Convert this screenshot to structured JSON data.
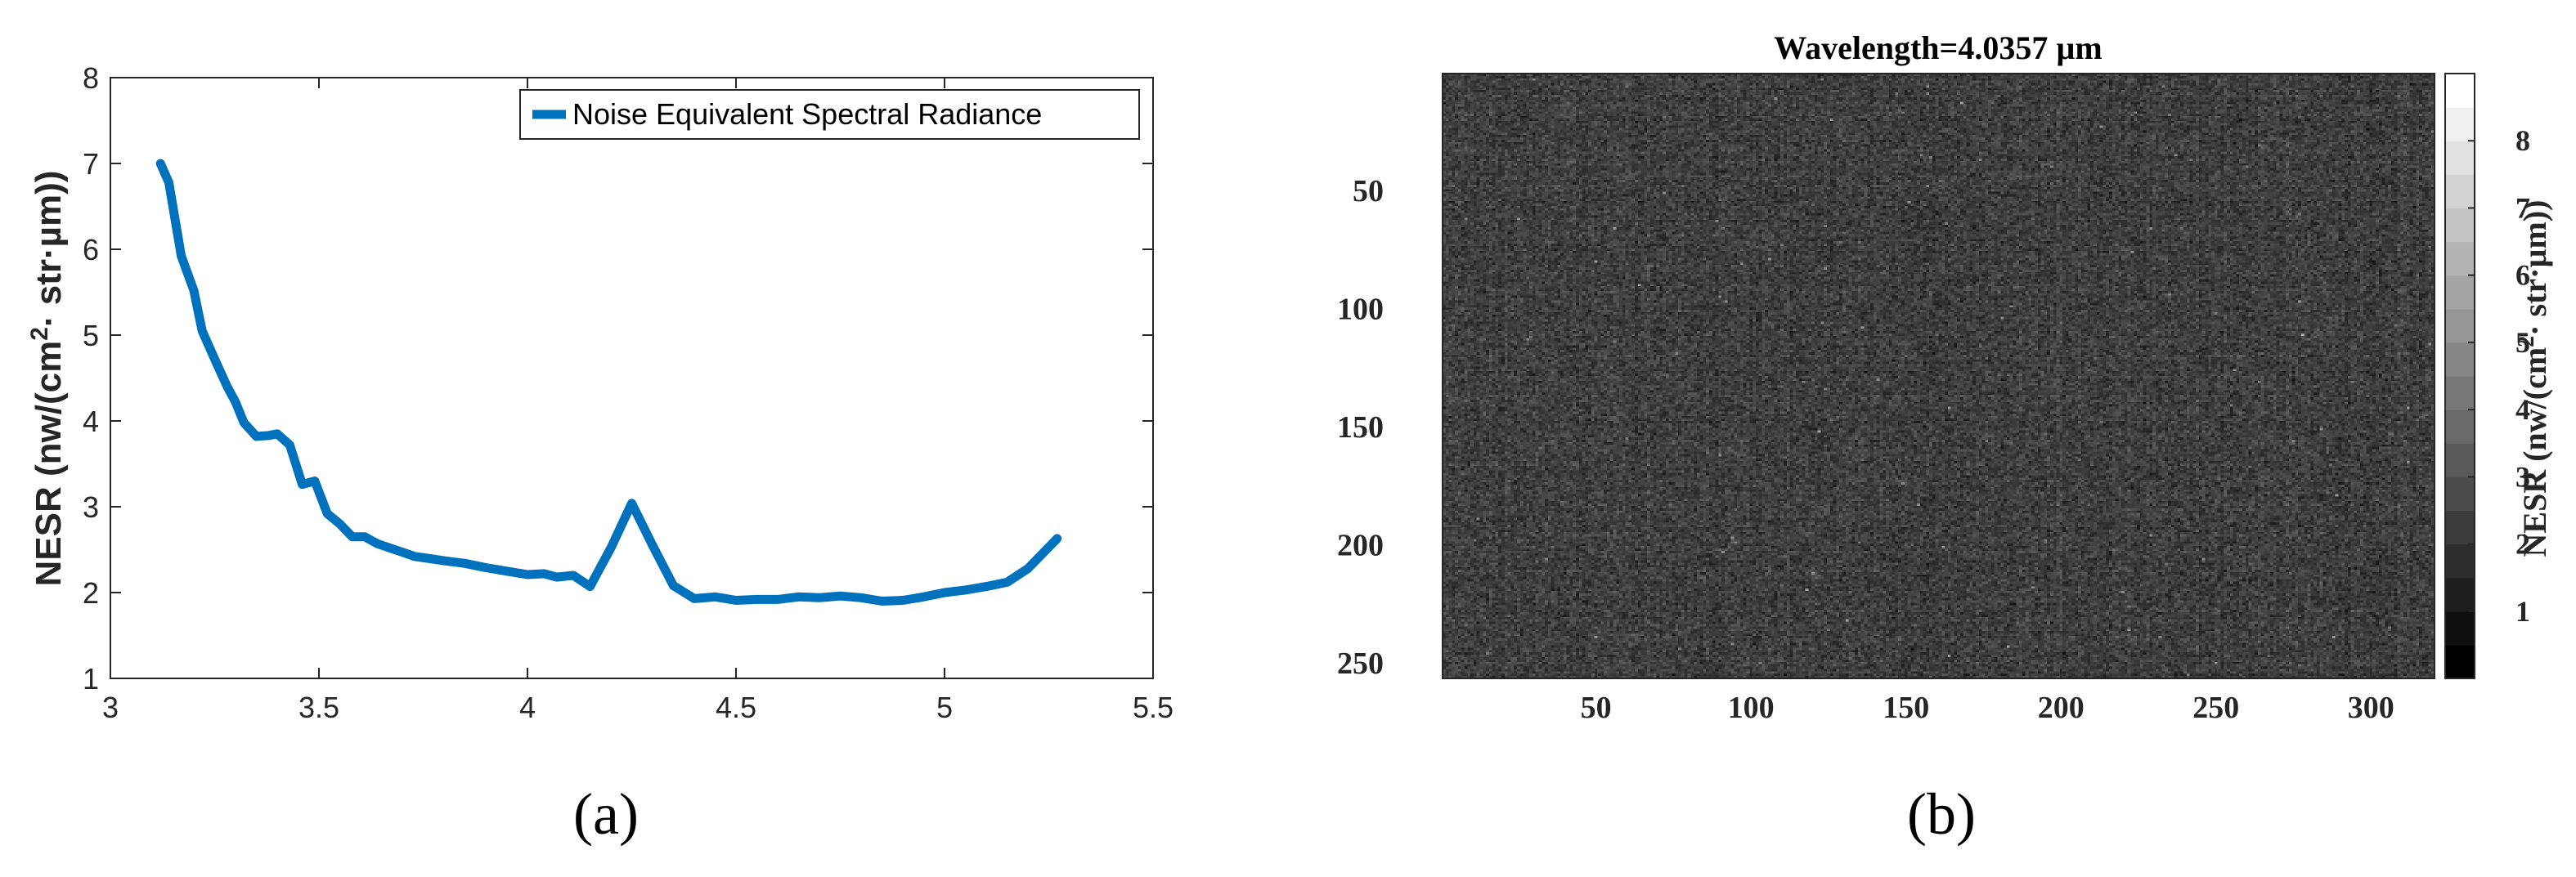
{
  "chart_data": [
    {
      "panel": "a",
      "type": "line",
      "title": "",
      "xlabel": "",
      "ylabel": "NESR (nw/(cm²· str·µm))",
      "ylabel_parts": [
        "NESR (nw/(cm",
        "2",
        "· str·µm))"
      ],
      "xlim": [
        3,
        5.5
      ],
      "ylim": [
        1,
        8
      ],
      "xticks": [
        "3",
        "3.5",
        "4",
        "4.5",
        "5",
        "5.5"
      ],
      "xtick_values": [
        3,
        3.5,
        4,
        4.5,
        5,
        5.5
      ],
      "yticks": [
        "1",
        "2",
        "3",
        "4",
        "5",
        "6",
        "7",
        "8"
      ],
      "ytick_values": [
        1,
        2,
        3,
        4,
        5,
        6,
        7,
        8
      ],
      "grid": false,
      "legend_position": "top-right",
      "series": [
        {
          "name": "Noise Equivalent Spectral Radiance",
          "color": "#0072BD",
          "x": [
            3.12,
            3.14,
            3.17,
            3.2,
            3.22,
            3.25,
            3.28,
            3.3,
            3.32,
            3.35,
            3.38,
            3.4,
            3.43,
            3.46,
            3.49,
            3.52,
            3.55,
            3.58,
            3.61,
            3.64,
            3.67,
            3.7,
            3.73,
            3.76,
            3.8,
            3.85,
            3.9,
            3.95,
            4.0,
            4.04,
            4.07,
            4.11,
            4.15,
            4.2,
            4.25,
            4.3,
            4.35,
            4.4,
            4.45,
            4.5,
            4.55,
            4.6,
            4.65,
            4.7,
            4.75,
            4.8,
            4.85,
            4.9,
            4.95,
            5.0,
            5.05,
            5.1,
            5.15,
            5.2,
            5.27
          ],
          "y": [
            7.0,
            6.78,
            5.92,
            5.52,
            5.05,
            4.72,
            4.4,
            4.22,
            3.98,
            3.82,
            3.83,
            3.85,
            3.72,
            3.26,
            3.3,
            2.92,
            2.8,
            2.65,
            2.65,
            2.57,
            2.52,
            2.47,
            2.42,
            2.4,
            2.37,
            2.34,
            2.29,
            2.25,
            2.21,
            2.22,
            2.18,
            2.2,
            2.07,
            2.52,
            3.04,
            2.55,
            2.08,
            1.93,
            1.95,
            1.91,
            1.92,
            1.92,
            1.95,
            1.94,
            1.96,
            1.94,
            1.9,
            1.91,
            1.95,
            2.0,
            2.03,
            2.07,
            2.12,
            2.28,
            2.63
          ]
        }
      ],
      "panel_label": "(a)"
    },
    {
      "panel": "b",
      "type": "heatmap",
      "title": "Wavelength=4.0357 µm",
      "xlabel": "",
      "ylabel": "",
      "xlim": [
        0.5,
        320.5
      ],
      "ylim": [
        256.5,
        0.5
      ],
      "xticks": [
        "50",
        "100",
        "150",
        "200",
        "250",
        "300"
      ],
      "xtick_values": [
        50,
        100,
        150,
        200,
        250,
        300
      ],
      "yticks": [
        "50",
        "100",
        "150",
        "200",
        "250"
      ],
      "ytick_values": [
        50,
        100,
        150,
        200,
        250
      ],
      "colormap": "gray",
      "clim": [
        0,
        9
      ],
      "typical_value_range": [
        1.2,
        3.2
      ],
      "colorbar": {
        "label": "NESR (nw/(cm²· str·µm))",
        "label_parts": [
          "NESR (nw/(cm",
          "2",
          "· str·µm))"
        ],
        "ticks": [
          "1",
          "2",
          "3",
          "4",
          "5",
          "6",
          "7",
          "8"
        ],
        "tick_values": [
          1,
          2,
          3,
          4,
          5,
          6,
          7,
          8
        ],
        "levels": 18
      },
      "panel_label": "(b)"
    }
  ]
}
